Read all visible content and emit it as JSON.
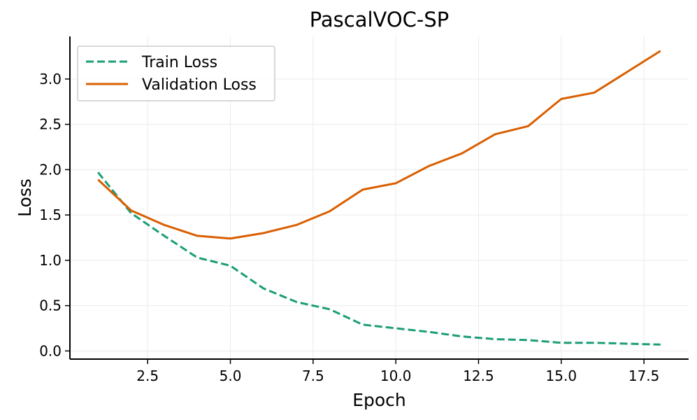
{
  "chart_data": {
    "type": "line",
    "title": "PascalVOC-SP",
    "xlabel": "Epoch",
    "ylabel": "Loss",
    "xlim": [
      0.15,
      18.85
    ],
    "ylim": [
      -0.09,
      3.47
    ],
    "xticks": [
      2.5,
      5.0,
      7.5,
      10.0,
      12.5,
      15.0,
      17.5
    ],
    "xtick_labels": [
      "2.5",
      "5.0",
      "7.5",
      "10.0",
      "12.5",
      "15.0",
      "17.5"
    ],
    "yticks": [
      0.0,
      0.5,
      1.0,
      1.5,
      2.0,
      2.5,
      3.0
    ],
    "ytick_labels": [
      "0.0",
      "0.5",
      "1.0",
      "1.5",
      "2.0",
      "2.5",
      "3.0"
    ],
    "grid": true,
    "legend_position": "top-left",
    "x": [
      1,
      2,
      3,
      4,
      5,
      6,
      7,
      8,
      9,
      10,
      11,
      12,
      13,
      14,
      15,
      16,
      17,
      18
    ],
    "series": [
      {
        "name": "Train Loss",
        "style": "dashed",
        "color": "#1b9e77",
        "values": [
          1.97,
          1.52,
          1.27,
          1.03,
          0.94,
          0.69,
          0.54,
          0.46,
          0.29,
          0.25,
          0.21,
          0.16,
          0.13,
          0.12,
          0.09,
          0.09,
          0.08,
          0.07
        ]
      },
      {
        "name": "Validation Loss",
        "style": "solid",
        "color": "#d95f02",
        "values": [
          1.89,
          1.55,
          1.39,
          1.27,
          1.24,
          1.3,
          1.39,
          1.54,
          1.78,
          1.85,
          2.04,
          2.18,
          2.39,
          2.48,
          2.78,
          2.85,
          3.08,
          3.31
        ]
      }
    ]
  }
}
